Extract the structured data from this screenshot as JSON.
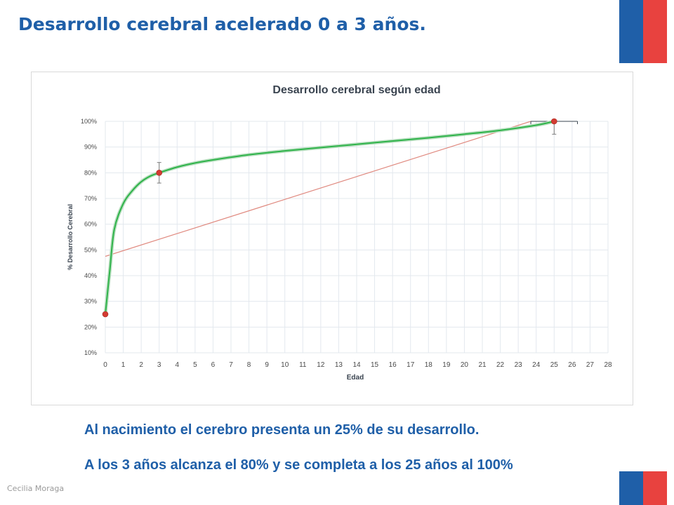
{
  "slide": {
    "title": "Desarrollo cerebral acelerado 0 a 3 años.",
    "caption_line1": "Al nacimiento el cerebro presenta un  25% de su desarrollo.",
    "caption_line2": "A los 3 años alcanza el 80% y se completa a los 25 años al 100%",
    "footer": "Cecilia Moraga"
  },
  "colors": {
    "title": "#1f5fa8",
    "flag_blue": "#1f5fa8",
    "flag_red": "#e8423f",
    "curve": "#2fb34a",
    "trendline": "#e08a80",
    "marker": "#d33b32",
    "grid": "#e3e8ee",
    "axis_text": "#4a4a4a"
  },
  "chart_data": {
    "type": "line",
    "title": "Desarrollo cerebral según edad",
    "xlabel": "Edad",
    "ylabel": "% Desarrollo Cerebral",
    "xlim": [
      0,
      28
    ],
    "ylim": [
      0.1,
      1.0
    ],
    "x_ticks": [
      "0",
      "1",
      "2",
      "3",
      "4",
      "5",
      "6",
      "7",
      "8",
      "9",
      "10",
      "11",
      "12",
      "13",
      "14",
      "15",
      "16",
      "17",
      "18",
      "19",
      "20",
      "21",
      "22",
      "23",
      "24",
      "25",
      "26",
      "27",
      "28"
    ],
    "y_ticks": [
      "10%",
      "20%",
      "30%",
      "40%",
      "50%",
      "60%",
      "70%",
      "80%",
      "90%",
      "100%"
    ],
    "grid": true,
    "series": [
      {
        "kind": "smooth-curve",
        "x": [
          0,
          0.25,
          0.5,
          1,
          1.5,
          2,
          2.5,
          3,
          4,
          5,
          6,
          8,
          10,
          12,
          15,
          18,
          20,
          22,
          24,
          25
        ],
        "y": [
          0.25,
          0.42,
          0.58,
          0.68,
          0.73,
          0.765,
          0.787,
          0.8,
          0.822,
          0.838,
          0.85,
          0.87,
          0.885,
          0.898,
          0.917,
          0.936,
          0.95,
          0.965,
          0.985,
          1.0
        ]
      },
      {
        "kind": "markers",
        "x": [
          0,
          3,
          25
        ],
        "y": [
          0.25,
          0.8,
          1.0
        ]
      },
      {
        "kind": "trendline",
        "x": [
          0,
          23.7
        ],
        "y": [
          0.475,
          1.0
        ]
      }
    ],
    "error_bars": [
      {
        "x": 3,
        "y_low": 0.76,
        "y_high": 0.84
      },
      {
        "x": 25,
        "y_low": 0.95,
        "y_high": 1.0
      }
    ],
    "horizontal_error_bar": {
      "x_low": 23.7,
      "x_high": 26.3,
      "y": 1.0
    }
  }
}
